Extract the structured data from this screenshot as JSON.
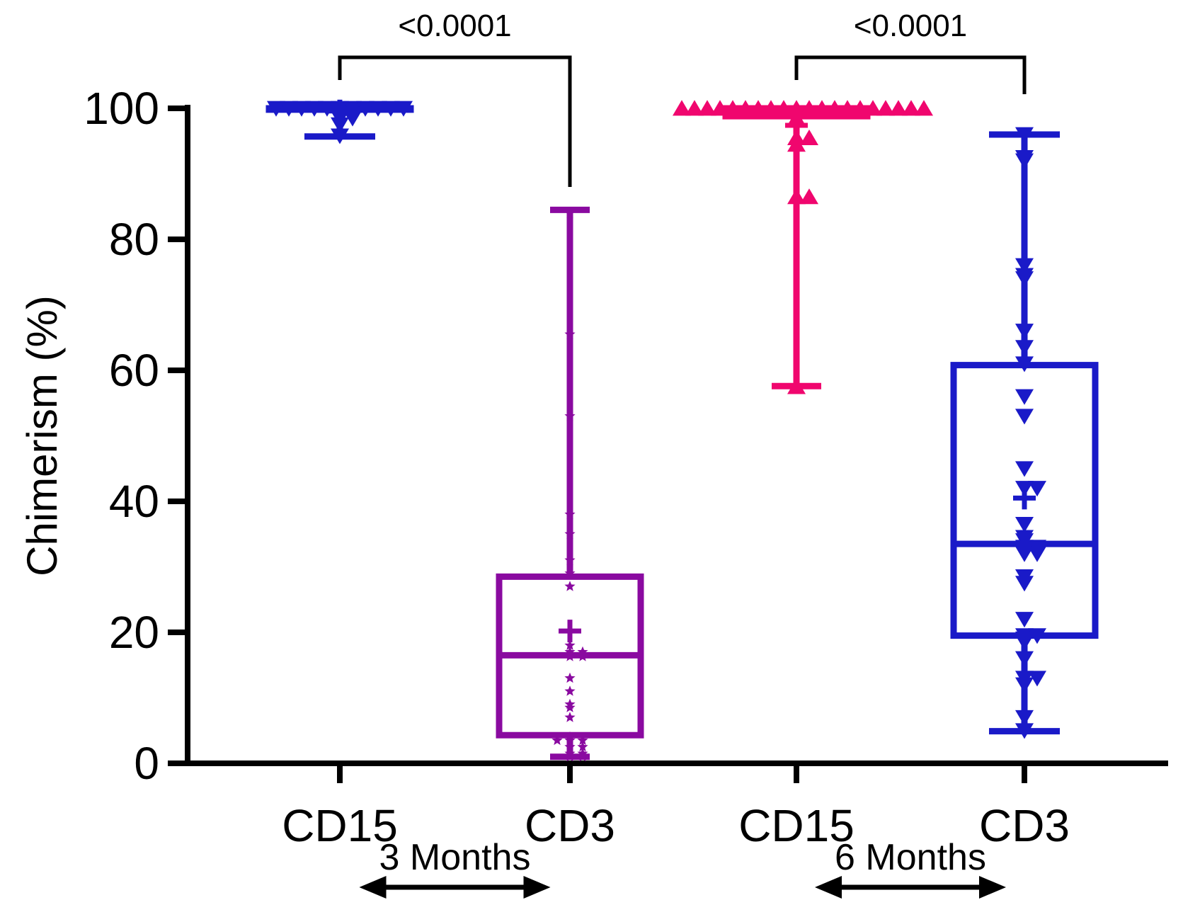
{
  "chart_data": {
    "type": "box",
    "title": "",
    "xlabel": "",
    "ylabel": "Chimerism (%)",
    "ylim": [
      0,
      100
    ],
    "yticks": [
      0,
      20,
      40,
      60,
      80,
      100
    ],
    "grid": false,
    "categories": [
      "CD15",
      "CD3",
      "CD15",
      "CD3"
    ],
    "groups": [
      {
        "label": "3 Months",
        "categories": [
          0,
          1
        ]
      },
      {
        "label": "6 Months",
        "categories": [
          2,
          3
        ]
      }
    ],
    "comparisons": [
      {
        "between": [
          0,
          1
        ],
        "p_label": "<0.0001"
      },
      {
        "between": [
          2,
          3
        ],
        "p_label": "<0.0001"
      }
    ],
    "colors": [
      "#1a1ac8",
      "#8a0aa0",
      "#f0066e",
      "#1a1ac8"
    ],
    "series": [
      {
        "name": "CD15 3 Months",
        "marker": "triangle-down",
        "min": 95.7,
        "q1": 99.8,
        "median": 100,
        "q3": 100,
        "max": 100,
        "mean": 99.6,
        "points": [
          100,
          100,
          100,
          100,
          100,
          100,
          100,
          100,
          100,
          100,
          100,
          98.5,
          98.5,
          97.5,
          95.8
        ]
      },
      {
        "name": "CD3 3 Months",
        "marker": "star",
        "min": 1,
        "q1": 4.3,
        "median": 16.5,
        "q3": 28.5,
        "max": 84.5,
        "mean": 20.2,
        "points": [
          84,
          65.5,
          53,
          38,
          35,
          31,
          29,
          27,
          18,
          17,
          17,
          16.3,
          16.3,
          13,
          11,
          9,
          8.5,
          7,
          4,
          3.5,
          3.5,
          3.5,
          2.5,
          2.5,
          1.5,
          1.5,
          1,
          1
        ]
      },
      {
        "name": "CD15 6 Months",
        "marker": "triangle-up",
        "min": 57.6,
        "q1": 98.8,
        "median": 100,
        "q3": 100,
        "max": 100,
        "mean": 97.4,
        "points": [
          100,
          100,
          100,
          100,
          100,
          100,
          100,
          100,
          100,
          100,
          100,
          100,
          100,
          100,
          100,
          100,
          100,
          100,
          100,
          100,
          98.5,
          95.5,
          95.5,
          94.5,
          86.5,
          86.5,
          57.5
        ]
      },
      {
        "name": "CD3 6 Months",
        "marker": "triangle-down",
        "min": 4.9,
        "q1": 19.5,
        "median": 33.5,
        "q3": 60.8,
        "max": 96,
        "mean": 40.5,
        "points": [
          96,
          92.5,
          92,
          76,
          74.5,
          74,
          66,
          63.5,
          61,
          56,
          53,
          45,
          42,
          42,
          36.5,
          34.5,
          34,
          33,
          33,
          32.5,
          32,
          32,
          28.5,
          27.5,
          22,
          19.5,
          19.5,
          19,
          18.5,
          16,
          13,
          13,
          12,
          7,
          5
        ]
      }
    ]
  }
}
